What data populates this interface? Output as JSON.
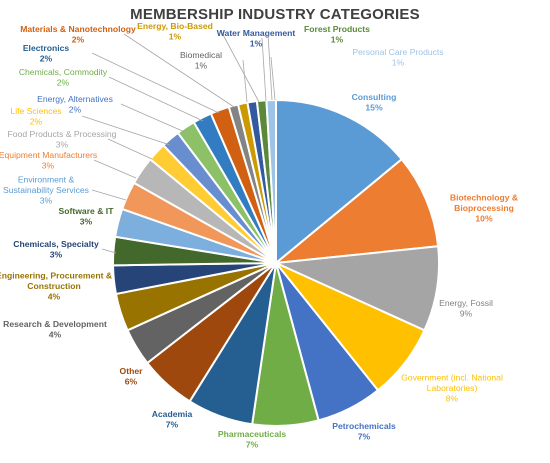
{
  "chart_data": {
    "type": "pie",
    "title": "MEMBERSHIP INDUSTRY CATEGORIES",
    "slices": [
      {
        "name": "Consulting",
        "value": 15,
        "label": "15%",
        "color": "#5B9BD5"
      },
      {
        "name": "Biotechnology & Bioprocessing",
        "value": 10,
        "label": "10%",
        "color": "#ED7D31"
      },
      {
        "name": "Energy, Fossil",
        "value": 9,
        "label": "9%",
        "color": "#A5A5A5"
      },
      {
        "name": "Government (incl. National Laboratories)",
        "value": 8,
        "label": "8%",
        "color": "#FFC000"
      },
      {
        "name": "Petrochemicals",
        "value": 7,
        "label": "7%",
        "color": "#4472C4"
      },
      {
        "name": "Pharmaceuticals",
        "value": 7,
        "label": "7%",
        "color": "#70AD47"
      },
      {
        "name": "Academia",
        "value": 7,
        "label": "7%",
        "color": "#255E91"
      },
      {
        "name": "Other",
        "value": 6,
        "label": "6%",
        "color": "#9E480E"
      },
      {
        "name": "Research & Development",
        "value": 4,
        "label": "4%",
        "color": "#636363"
      },
      {
        "name": "Engineering, Procurement & Construction",
        "value": 4,
        "label": "4%",
        "color": "#997300"
      },
      {
        "name": "Chemicals, Specialty",
        "value": 3,
        "label": "3%",
        "color": "#264478"
      },
      {
        "name": "Software & IT",
        "value": 3,
        "label": "3%",
        "color": "#43682B"
      },
      {
        "name": "Environment & Sustainability Services",
        "value": 3,
        "label": "3%",
        "color": "#7CAFDD"
      },
      {
        "name": "Equipment Manufacturers",
        "value": 3,
        "label": "3%",
        "color": "#F1975A"
      },
      {
        "name": "Food Products & Processing",
        "value": 3,
        "label": "3%",
        "color": "#B7B7B7"
      },
      {
        "name": "Life Sciences",
        "value": 2,
        "label": "2%",
        "color": "#FFCD33"
      },
      {
        "name": "Energy, Alternatives",
        "value": 2,
        "label": "2%",
        "color": "#698ED0"
      },
      {
        "name": "Chemicals, Commodity",
        "value": 2,
        "label": "2%",
        "color": "#8CC168"
      },
      {
        "name": "Electronics",
        "value": 2,
        "label": "2%",
        "color": "#327DC2"
      },
      {
        "name": "Materials & Nanotechnology",
        "value": 2,
        "label": "2%",
        "color": "#D26012"
      },
      {
        "name": "Biomedical",
        "value": 1,
        "label": "1%",
        "color": "#848484"
      },
      {
        "name": "Energy, Bio-Based",
        "value": 1,
        "label": "1%",
        "color": "#CC9A00"
      },
      {
        "name": "Water Management",
        "value": 1,
        "label": "1%",
        "color": "#335AA1"
      },
      {
        "name": "Forest Products",
        "value": 1,
        "label": "1%",
        "color": "#5A8A39"
      },
      {
        "name": "Personal Care Products",
        "value": 1,
        "label": "1%",
        "color": "#9DC3E6"
      }
    ],
    "legend": "none",
    "data_labels": "outside with leader lines"
  }
}
